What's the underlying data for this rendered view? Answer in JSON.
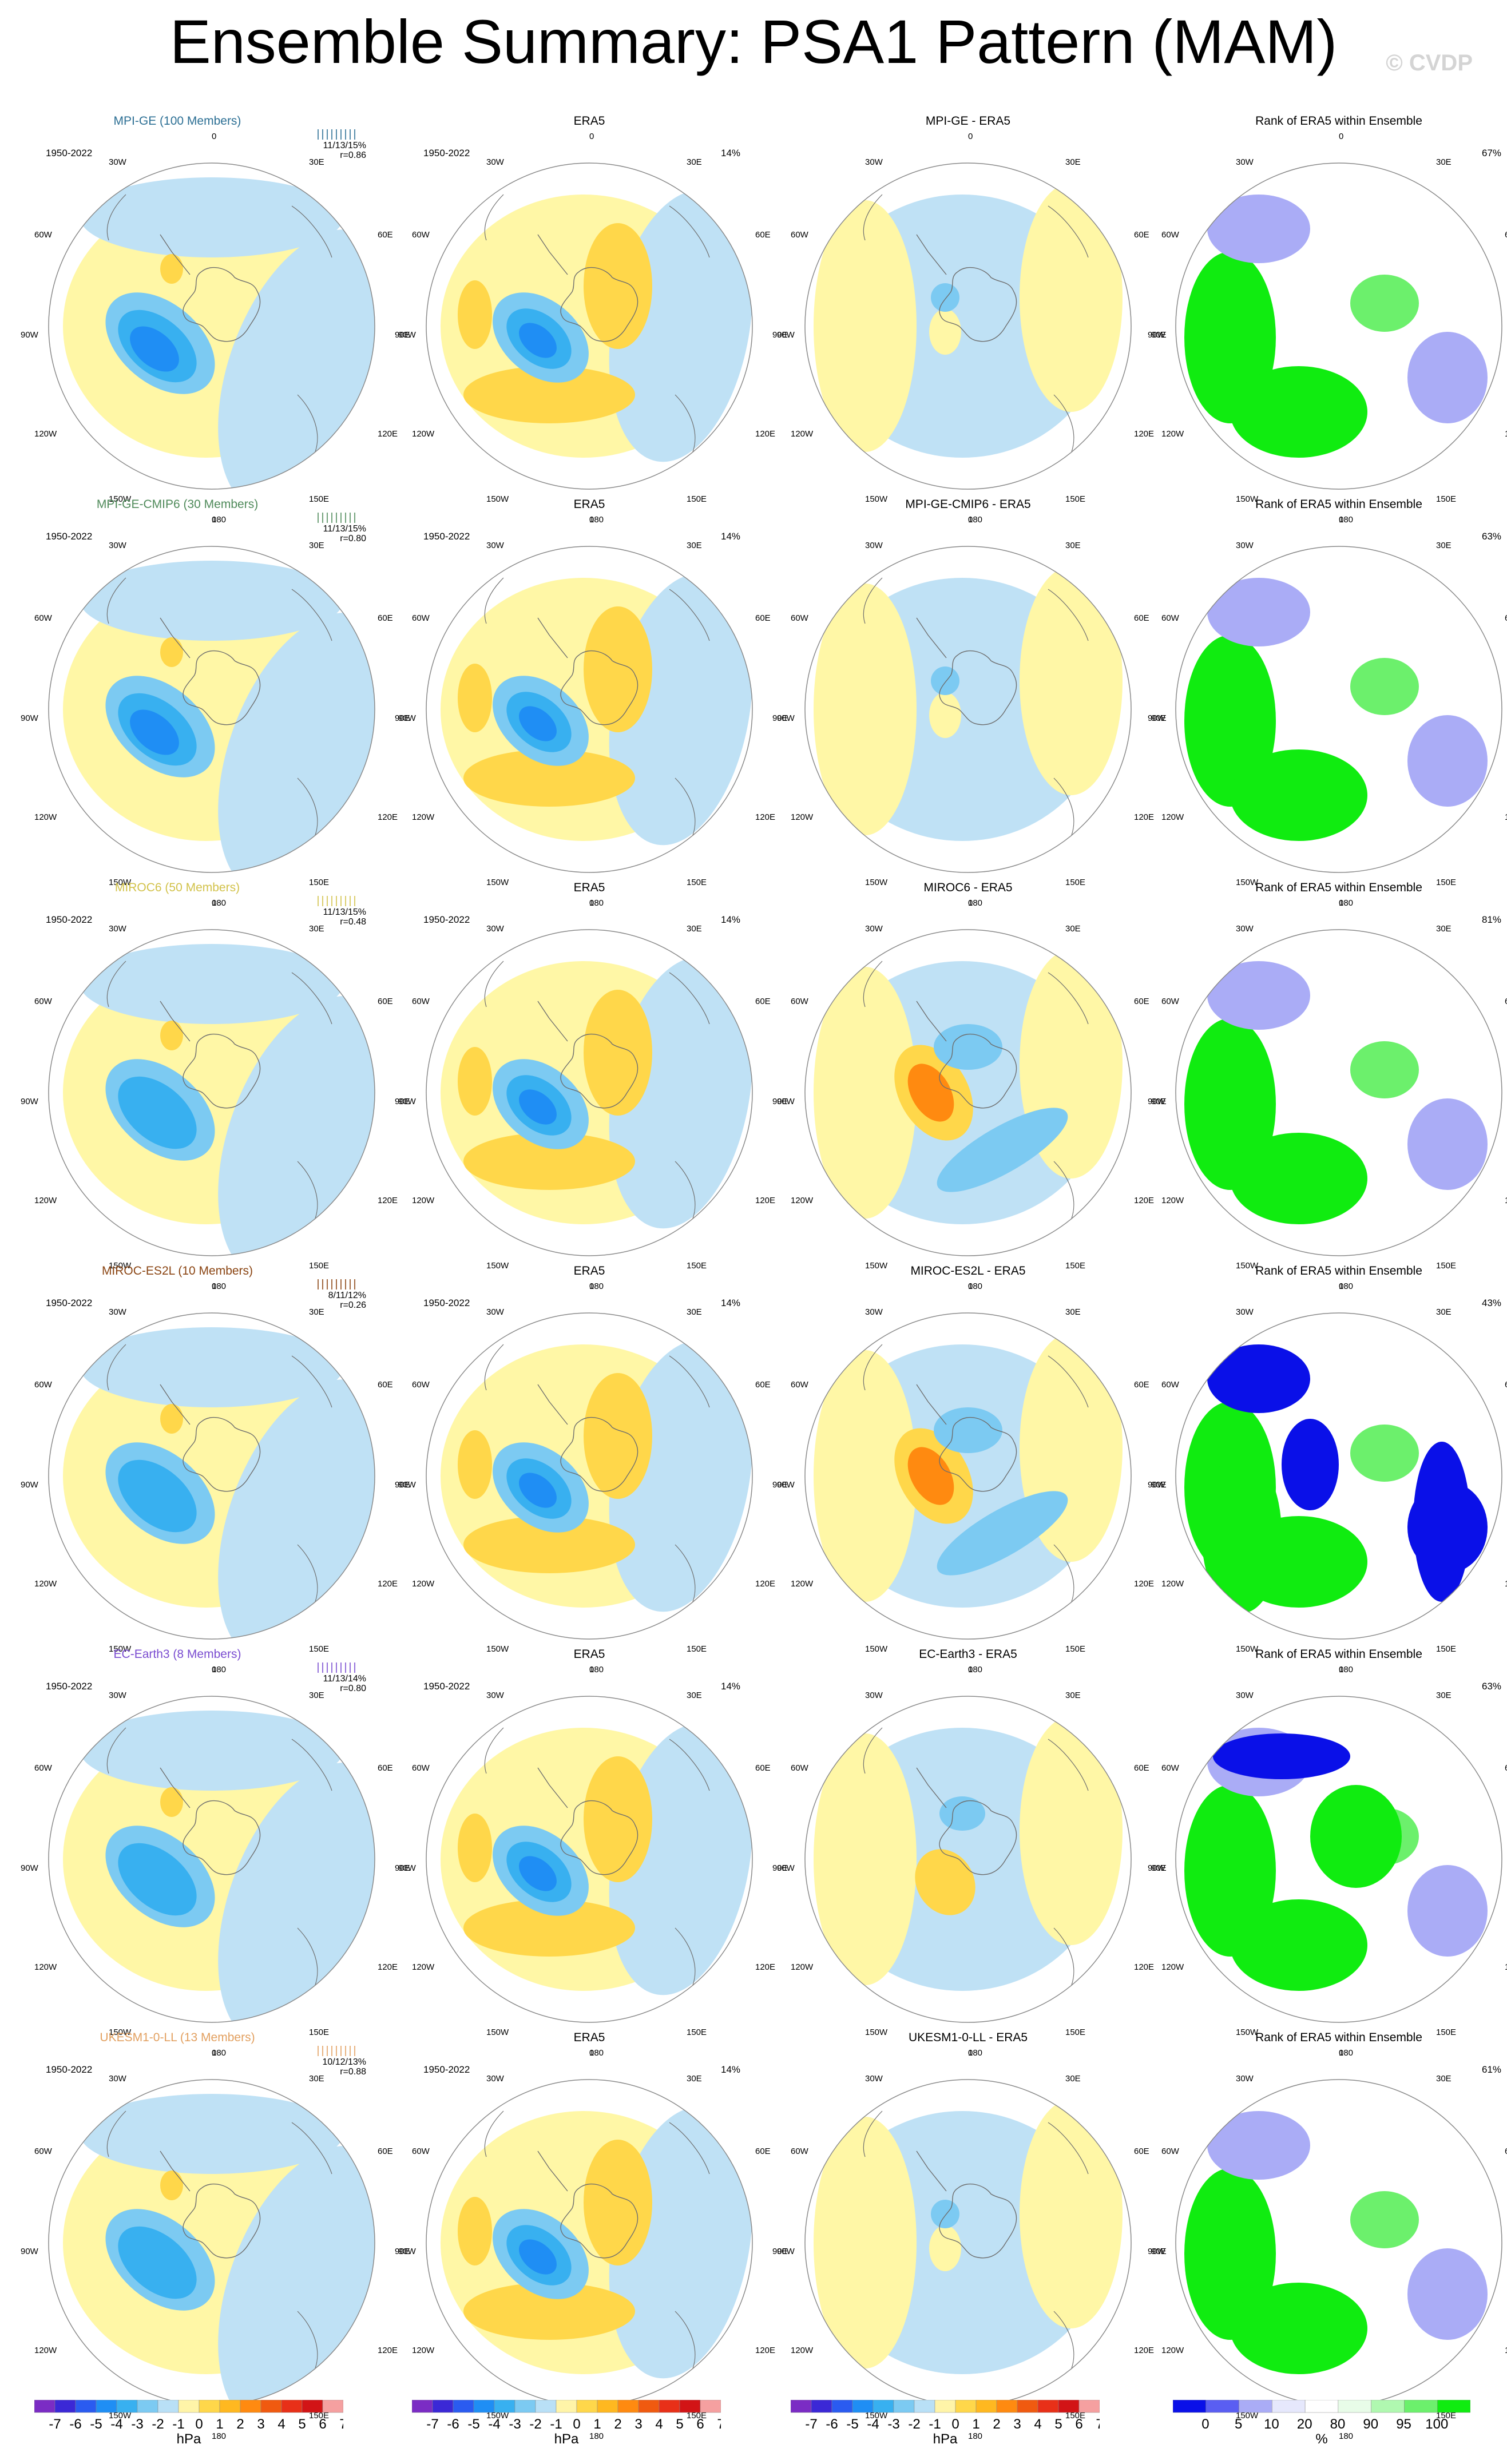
{
  "page": {
    "title": "Ensemble Summary: PSA1 Pattern (MAM)",
    "credit": "© CVDP"
  },
  "colors": {
    "neg": [
      "#7b2cc4",
      "#3b28d6",
      "#2a5bf0",
      "#1f8ef4",
      "#38b0f0",
      "#7ccaf2",
      "#b9e0f6"
    ],
    "pos": [
      "#fff4a8",
      "#ffd74a",
      "#ffb820",
      "#ff8a10",
      "#f05a10",
      "#e83018",
      "#d21416",
      "#f5a0a0"
    ],
    "rank": [
      "#0a10e8",
      "#5a5ef2",
      "#aaacf6",
      "#e6e8fc",
      "#ffffff",
      "#e8fce8",
      "#b0f8b0",
      "#6cf06c",
      "#10ec10"
    ],
    "model_titles": [
      "#2c6f94",
      "#4f8a5a",
      "#d2c24a",
      "#8a4412",
      "#7a4cd0",
      "#e2a060"
    ]
  },
  "rows": [
    {
      "model": "MPI-GE (100 Members)",
      "period": "1950-2022",
      "stats": "11/13/15%",
      "corr": "r=0.86",
      "diff_title": "MPI-GE - ERA5",
      "rank_pct": "67%"
    },
    {
      "model": "MPI-GE-CMIP6 (30 Members)",
      "period": "1950-2022",
      "stats": "11/13/15%",
      "corr": "r=0.80",
      "diff_title": "MPI-GE-CMIP6 - ERA5",
      "rank_pct": "63%"
    },
    {
      "model": "MIROC6 (50 Members)",
      "period": "1950-2022",
      "stats": "11/13/15%",
      "corr": "r=0.48",
      "diff_title": "MIROC6 - ERA5",
      "rank_pct": "81%"
    },
    {
      "model": "MIROC-ES2L (10 Members)",
      "period": "1950-2022",
      "stats": "8/11/12%",
      "corr": "r=0.26",
      "diff_title": "MIROC-ES2L - ERA5",
      "rank_pct": "43%"
    },
    {
      "model": "EC-Earth3 (8 Members)",
      "period": "1950-2022",
      "stats": "11/13/14%",
      "corr": "r=0.80",
      "diff_title": "EC-Earth3 - ERA5",
      "rank_pct": "63%"
    },
    {
      "model": "UKESM1-0-LL (13 Members)",
      "period": "1950-2022",
      "stats": "10/12/13%",
      "corr": "r=0.88",
      "diff_title": "UKESM1-0-LL - ERA5",
      "rank_pct": "61%"
    }
  ],
  "obs": {
    "title": "ERA5",
    "period": "1950-2022",
    "pct": "14%"
  },
  "rank_title": "Rank of ERA5 within Ensemble",
  "longitudes": [
    "0",
    "30E",
    "60E",
    "90E",
    "120E",
    "150E",
    "180",
    "150W",
    "120W",
    "90W",
    "60W",
    "30W"
  ],
  "colorbar": {
    "ticks": [
      "-7",
      "-6",
      "-5",
      "-4",
      "-3",
      "-2",
      "-1",
      "0",
      "1",
      "2",
      "3",
      "4",
      "5",
      "6",
      "7"
    ],
    "unit": "hPa",
    "rank_ticks": [
      "0",
      "5",
      "10",
      "20",
      "80",
      "90",
      "95",
      "100"
    ],
    "rank_unit": "%"
  }
}
